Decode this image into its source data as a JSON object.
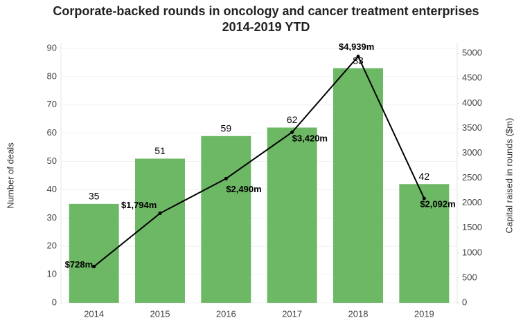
{
  "chart_data": {
    "type": "bar",
    "title": "Corporate-backed rounds in oncology and cancer treatment enterprises",
    "subtitle": "2014-2019 YTD",
    "categories": [
      "2014",
      "2015",
      "2016",
      "2017",
      "2018",
      "2019"
    ],
    "y_label": "Number of deals",
    "y2_label": "Capital raised in rounds ($m)",
    "series": [
      {
        "name": "Number of deals",
        "color": "#6db865",
        "values": [
          35,
          51,
          59,
          62,
          83,
          42
        ]
      },
      {
        "name": "Capital raised",
        "type": "line",
        "axis": "y2",
        "color": "#000000",
        "values": [
          728,
          1794,
          2490,
          3420,
          4939,
          2092
        ],
        "value_labels": [
          "$728m",
          "$1,794m",
          "$2,490m",
          "$3,420m",
          "$4,939m",
          "$2,092m"
        ]
      }
    ],
    "ylim": [
      0,
      90
    ],
    "yticks": [
      0,
      10,
      20,
      30,
      40,
      50,
      60,
      70,
      80,
      90
    ],
    "y2lim": [
      0,
      5100
    ],
    "y2ticks": [
      0,
      500,
      1000,
      1500,
      2000,
      2500,
      3000,
      3500,
      4000,
      4500,
      5000
    ],
    "grid": true
  }
}
